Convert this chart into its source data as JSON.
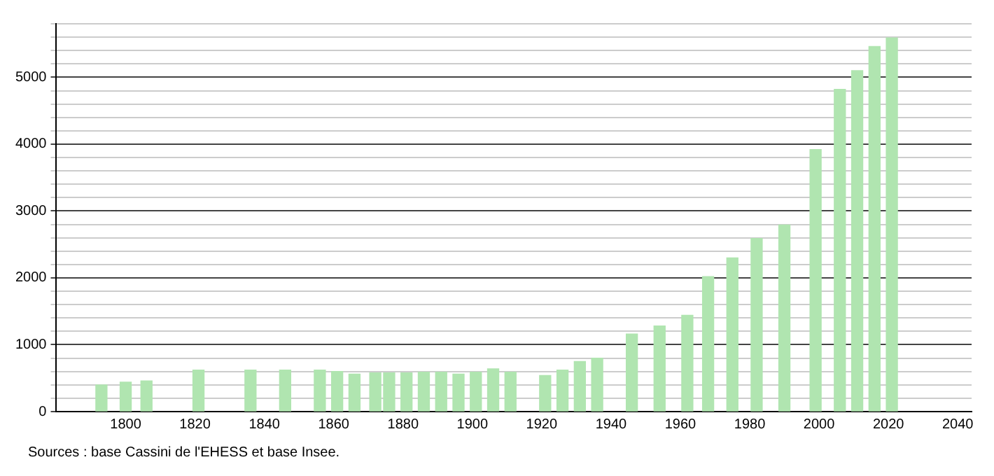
{
  "chart_data": {
    "type": "bar",
    "x": [
      1793,
      1800,
      1806,
      1821,
      1836,
      1846,
      1856,
      1861,
      1866,
      1872,
      1876,
      1881,
      1886,
      1891,
      1896,
      1901,
      1906,
      1911,
      1921,
      1926,
      1931,
      1936,
      1946,
      1954,
      1962,
      1968,
      1975,
      1982,
      1990,
      1999,
      2006,
      2011,
      2016,
      2021
    ],
    "values": [
      400,
      440,
      460,
      620,
      620,
      620,
      620,
      600,
      560,
      580,
      580,
      580,
      590,
      590,
      560,
      590,
      640,
      590,
      540,
      620,
      750,
      800,
      1160,
      1280,
      1440,
      2020,
      2300,
      2590,
      2790,
      3920,
      4820,
      5100,
      5460,
      5590
    ],
    "color": "#b0e5b0",
    "xlim": [
      1780,
      2044
    ],
    "xticks": [
      1800,
      1820,
      1840,
      1860,
      1880,
      1900,
      1920,
      1940,
      1960,
      1980,
      2000,
      2020,
      2040
    ],
    "ylim": [
      0,
      5800
    ],
    "yticks": [
      0,
      {
        "value": 200,
        "label": null
      },
      {
        "value": 400,
        "label": null
      },
      {
        "value": 600,
        "label": null
      },
      {
        "value": 800,
        "label": null
      },
      1000,
      {
        "value": 1200,
        "label": null
      },
      {
        "value": 1400,
        "label": null
      },
      {
        "value": 1600,
        "label": null
      },
      {
        "value": 1800,
        "label": null
      },
      2000,
      {
        "value": 2200,
        "label": null
      },
      {
        "value": 2400,
        "label": null
      },
      {
        "value": 2600,
        "label": null
      },
      {
        "value": 2800,
        "label": null
      },
      3000,
      {
        "value": 3200,
        "label": null
      },
      {
        "value": 3400,
        "label": null
      },
      {
        "value": 3600,
        "label": null
      },
      {
        "value": 3800,
        "label": null
      },
      4000,
      {
        "value": 4200,
        "label": null
      },
      {
        "value": 4400,
        "label": null
      },
      {
        "value": 4600,
        "label": null
      },
      {
        "value": 4800,
        "label": null
      },
      5000,
      {
        "value": 5200,
        "label": null
      },
      {
        "value": 5400,
        "label": null
      },
      {
        "value": 5600,
        "label": null
      },
      {
        "value": 5800,
        "label": null
      }
    ],
    "grid": "y",
    "legend": false,
    "annotations": [
      "Sources : base Cassini de l'EHESS et base Insee."
    ]
  }
}
